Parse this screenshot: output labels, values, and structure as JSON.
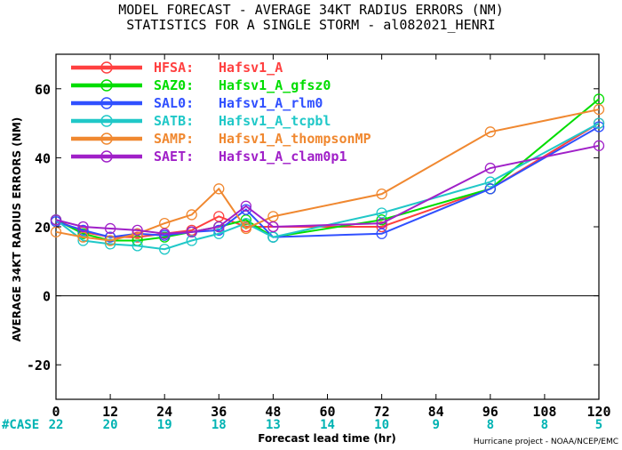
{
  "title_line1": "MODEL FORECAST - AVERAGE 34KT RADIUS ERRORS (NM)",
  "title_line2": "STATISTICS FOR A SINGLE STORM - al082021_HENRI",
  "credit": "Hurricane project - NOAA/NCEP/EMC",
  "case_label": "#CASE",
  "case_color": "#00b3b3",
  "chart_data": {
    "type": "line",
    "xlabel": "Forecast lead time (hr)",
    "ylabel": "AVERAGE 34KT RADIUS ERRORS (NM)",
    "xlim": [
      0,
      120
    ],
    "ylim": [
      -30,
      70
    ],
    "x_ticks": [
      0,
      12,
      24,
      36,
      48,
      60,
      72,
      84,
      96,
      108,
      120
    ],
    "y_ticks": [
      -20,
      0,
      20,
      40,
      60
    ],
    "zero_line": true,
    "grid": false,
    "legend_position": "top-left",
    "case_counts": [
      {
        "x": 0,
        "n": "22"
      },
      {
        "x": 12,
        "n": "20"
      },
      {
        "x": 24,
        "n": "19"
      },
      {
        "x": 36,
        "n": "18"
      },
      {
        "x": 48,
        "n": "13"
      },
      {
        "x": 60,
        "n": "14"
      },
      {
        "x": 72,
        "n": "10"
      },
      {
        "x": 84,
        "n": "9"
      },
      {
        "x": 96,
        "n": "8"
      },
      {
        "x": 108,
        "n": "8"
      },
      {
        "x": 120,
        "n": "5"
      }
    ],
    "x": [
      0,
      6,
      12,
      18,
      24,
      30,
      36,
      42,
      48,
      72,
      96,
      120
    ],
    "series": [
      {
        "name": "HFSA:",
        "desc": "Hafsv1_A",
        "color": "#ff4040",
        "values": [
          22,
          18.5,
          17,
          17,
          18,
          19,
          23,
          20,
          20,
          20,
          31,
          50
        ]
      },
      {
        "name": "SAZ0:",
        "desc": "Hafsv1_A_gfsz0",
        "color": "#00dd00",
        "values": [
          22,
          18,
          16,
          16,
          17,
          18.5,
          20,
          22,
          17,
          22,
          31,
          57
        ]
      },
      {
        "name": "SAL0:",
        "desc": "Hafsv1_A_rlm0",
        "color": "#3050ff",
        "values": [
          21.5,
          19,
          17,
          18,
          17.5,
          18.5,
          19,
          25,
          17,
          18,
          31,
          49
        ]
      },
      {
        "name": "SATB:",
        "desc": "Hafsv1_A_tcpbl",
        "color": "#20c8c8",
        "values": [
          22,
          16,
          15,
          14.5,
          13.5,
          16,
          18,
          21,
          17,
          24,
          33,
          50
        ]
      },
      {
        "name": "SAMP:",
        "desc": "Hafsv1_A_thompsonMP",
        "color": "#f08830",
        "values": [
          18.5,
          17,
          16,
          18,
          21,
          23.5,
          31,
          19.5,
          23,
          29.5,
          47.5,
          54
        ]
      },
      {
        "name": "SAET:",
        "desc": "Hafsv1_A_clam0p1",
        "color": "#a020c8",
        "values": [
          22,
          20,
          19.5,
          19,
          18,
          18.5,
          20,
          26,
          20,
          21,
          37,
          43.5
        ]
      }
    ]
  }
}
